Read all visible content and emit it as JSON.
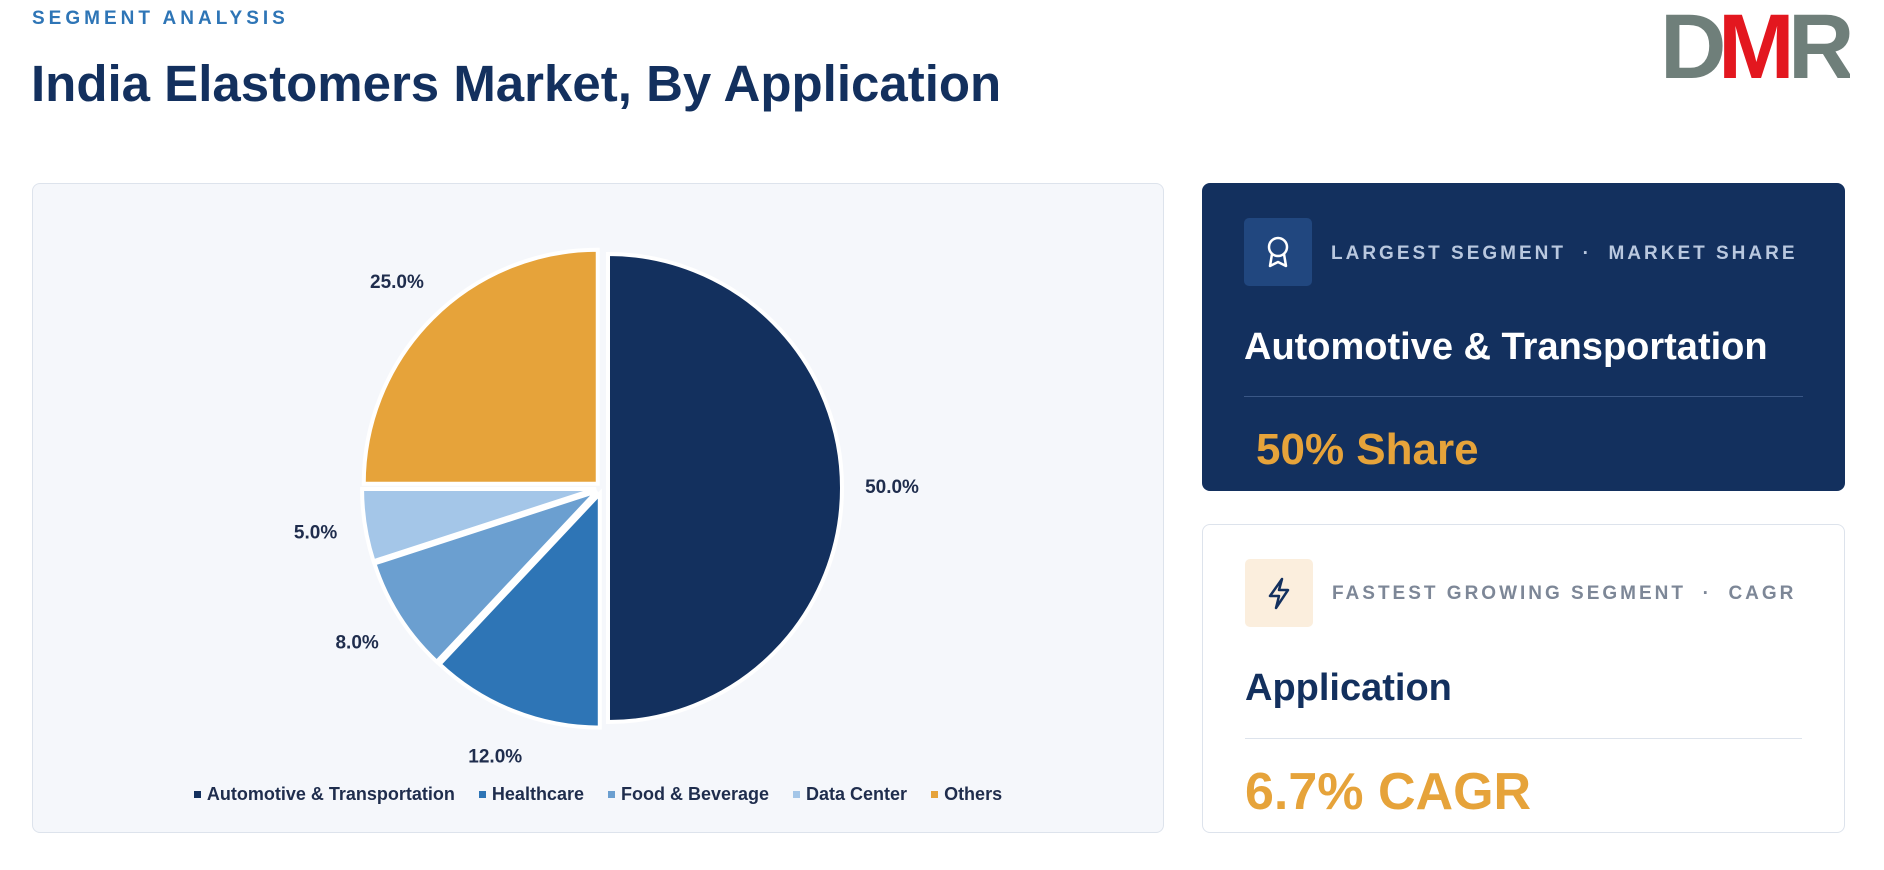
{
  "header": {
    "eyebrow": "SEGMENT ANALYSIS",
    "title": "India Elastomers Market, By Application",
    "logo": [
      "D",
      "M",
      "R"
    ]
  },
  "chart_data": {
    "type": "pie",
    "categories": [
      "Automotive & Transportation",
      "Healthcare",
      "Food & Beverage",
      "Data Center",
      "Others"
    ],
    "values": [
      50,
      12,
      8,
      5,
      25
    ],
    "value_labels": [
      "50.0%",
      "12.0%",
      "8.0%",
      "5.0%",
      "25.0%"
    ],
    "colors": [
      "#13305e",
      "#2e75b6",
      "#6b9fd0",
      "#a4c6e8",
      "#e6a33a"
    ]
  },
  "cards": [
    {
      "label": "LARGEST SEGMENT  ·  MARKET SHARE",
      "segment": "Automotive & Transportation",
      "value": "50% Share"
    },
    {
      "label": "FASTEST GROWING SEGMENT  ·  CAGR",
      "segment": "Application",
      "value": "6.7% CAGR"
    }
  ]
}
